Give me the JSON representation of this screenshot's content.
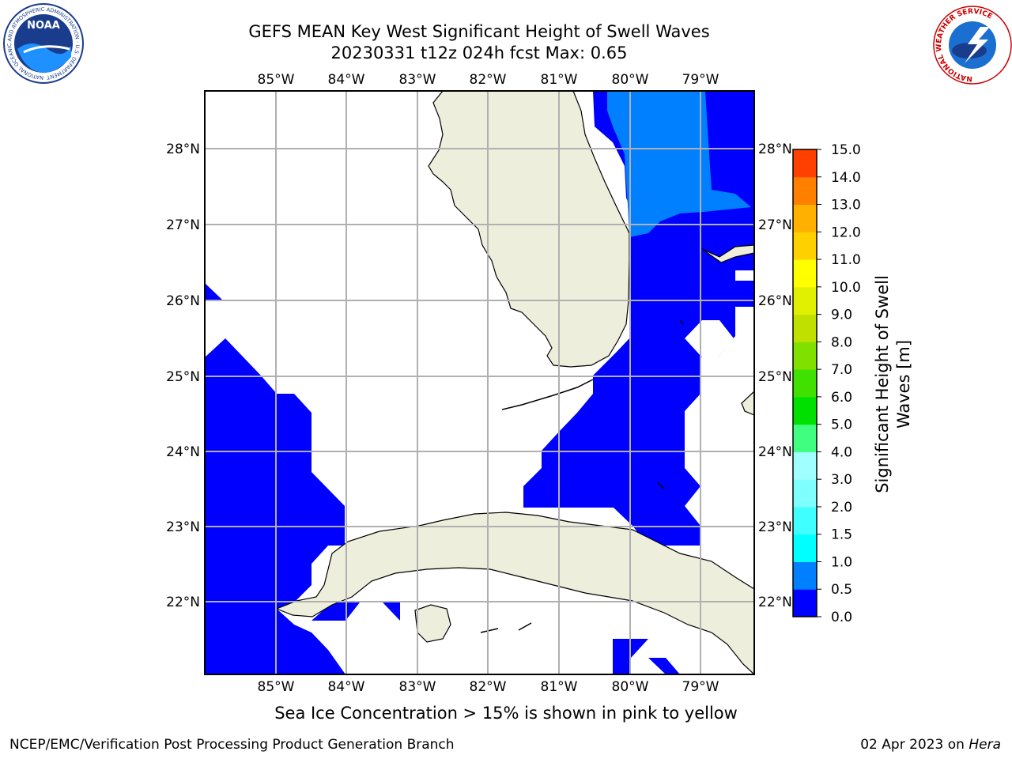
{
  "header": {
    "title_line1": "GEFS MEAN Key West Significant Height of Swell Waves",
    "title_line2": "20230331 t12z 024h fcst   Max: 0.65"
  },
  "map": {
    "region": "Key West",
    "lon_ticks": [
      "85°W",
      "84°W",
      "83°W",
      "82°W",
      "81°W",
      "80°W",
      "79°W"
    ],
    "lat_ticks": [
      "28°N",
      "27°N",
      "26°N",
      "25°N",
      "24°N",
      "23°N",
      "22°N"
    ],
    "land_color": "#eeeedd",
    "grid_color": "#b0b0b0",
    "field_colors": {
      "0.0-0.5": "#0000ff",
      "0.5-1.0": "#0080ff"
    }
  },
  "colorbar": {
    "label_line1": "Significant Height of Swell",
    "label_line2": "Waves [m]",
    "ticks": [
      "0.0",
      "0.5",
      "1.0",
      "1.5",
      "2.0",
      "3.0",
      "4.0",
      "5.0",
      "6.0",
      "7.0",
      "8.0",
      "9.0",
      "10.0",
      "11.0",
      "12.0",
      "13.0",
      "14.0",
      "15.0"
    ],
    "colors": [
      "#0000ff",
      "#0080ff",
      "#00ffff",
      "#40ffff",
      "#80ffff",
      "#a0ffff",
      "#40ff80",
      "#00e000",
      "#40e000",
      "#80e000",
      "#c0e000",
      "#e0f000",
      "#ffff00",
      "#ffd000",
      "#ffb000",
      "#ff8000",
      "#ff4000",
      "#ff0000"
    ]
  },
  "notes": {
    "sea_ice": "Sea Ice Concentration > 15% is shown in pink to yellow"
  },
  "footer": {
    "left": "NCEP/EMC/Verification Post Processing Product Generation Branch",
    "date": "02 Apr 2023 on ",
    "host": "Hera"
  },
  "logos": {
    "noaa_text": "NOAA",
    "noaa_ring": "NATIONAL OCEANIC AND ATMOSPHERIC ADMINISTRATION · U.S. DEPARTMENT OF COMMERCE",
    "nws_ring": "NATIONAL WEATHER SERVICE"
  }
}
